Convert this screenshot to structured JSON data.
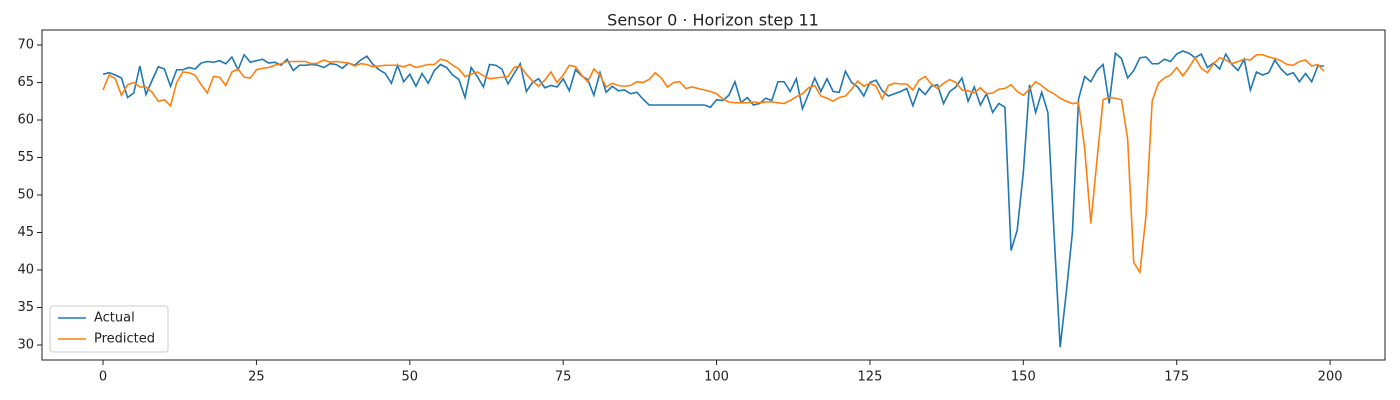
{
  "chart_data": {
    "type": "line",
    "title": "Sensor 0 · Horizon step 11",
    "x": [
      0,
      1,
      2,
      3,
      4,
      5,
      6,
      7,
      8,
      9,
      10,
      11,
      12,
      13,
      14,
      15,
      16,
      17,
      18,
      19,
      20,
      21,
      22,
      23,
      24,
      25,
      26,
      27,
      28,
      29,
      30,
      31,
      32,
      33,
      34,
      35,
      36,
      37,
      38,
      39,
      40,
      41,
      42,
      43,
      44,
      45,
      46,
      47,
      48,
      49,
      50,
      51,
      52,
      53,
      54,
      55,
      56,
      57,
      58,
      59,
      60,
      61,
      62,
      63,
      64,
      65,
      66,
      67,
      68,
      69,
      70,
      71,
      72,
      73,
      74,
      75,
      76,
      77,
      78,
      79,
      80,
      81,
      82,
      83,
      84,
      85,
      86,
      87,
      88,
      89,
      90,
      91,
      92,
      93,
      94,
      95,
      96,
      97,
      98,
      99,
      100,
      101,
      102,
      103,
      104,
      105,
      106,
      107,
      108,
      109,
      110,
      111,
      112,
      113,
      114,
      115,
      116,
      117,
      118,
      119,
      120,
      121,
      122,
      123,
      124,
      125,
      126,
      127,
      128,
      129,
      130,
      131,
      132,
      133,
      134,
      135,
      136,
      137,
      138,
      139,
      140,
      141,
      142,
      143,
      144,
      145,
      146,
      147,
      148,
      149,
      150,
      151,
      152,
      153,
      154,
      155,
      156,
      157,
      158,
      159,
      160,
      161,
      162,
      163,
      164,
      165,
      166,
      167,
      168,
      169,
      170,
      171,
      172,
      173,
      174,
      175,
      176,
      177,
      178,
      179,
      180,
      181,
      182,
      183,
      184,
      185,
      186,
      187,
      188,
      189,
      190,
      191,
      192,
      193,
      194,
      195,
      196,
      197,
      198,
      199
    ],
    "series": [
      {
        "name": "Actual",
        "color": "#1f77b4",
        "values": [
          66.1,
          66.3,
          66.0,
          65.6,
          63.0,
          63.6,
          67.2,
          63.4,
          65.3,
          67.1,
          66.8,
          64.5,
          66.7,
          66.7,
          67.0,
          66.8,
          67.6,
          67.8,
          67.7,
          67.9,
          67.5,
          68.4,
          66.7,
          68.7,
          67.7,
          67.9,
          68.1,
          67.6,
          67.7,
          67.3,
          68.1,
          66.6,
          67.3,
          67.3,
          67.4,
          67.3,
          67.0,
          67.5,
          67.4,
          66.9,
          67.6,
          67.3,
          68.0,
          68.5,
          67.4,
          66.7,
          66.2,
          64.9,
          67.3,
          65.1,
          66.1,
          64.5,
          66.2,
          64.9,
          66.6,
          67.4,
          67.0,
          66.0,
          65.4,
          63.0,
          67.0,
          65.8,
          64.4,
          67.4,
          67.3,
          66.8,
          64.8,
          66.2,
          67.5,
          63.8,
          65.0,
          65.5,
          64.3,
          64.6,
          64.4,
          65.5,
          63.9,
          66.7,
          65.9,
          65.4,
          63.3,
          66.3,
          63.7,
          64.5,
          63.9,
          64.0,
          63.5,
          63.7,
          62.8,
          62.0,
          62.0,
          62.0,
          62.0,
          62.0,
          62.0,
          62.0,
          62.0,
          62.0,
          62.0,
          61.7,
          62.7,
          62.6,
          63.3,
          65.1,
          62.3,
          63.0,
          62.0,
          62.2,
          62.9,
          62.6,
          65.1,
          65.1,
          63.8,
          65.5,
          61.5,
          63.5,
          65.6,
          63.8,
          65.5,
          63.8,
          63.7,
          66.5,
          65.0,
          64.4,
          63.2,
          65.0,
          65.3,
          63.9,
          63.2,
          63.5,
          63.8,
          64.2,
          61.9,
          64.2,
          63.4,
          64.5,
          64.7,
          62.2,
          63.8,
          64.4,
          65.6,
          62.5,
          64.4,
          62.0,
          63.5,
          61.0,
          62.2,
          61.7,
          42.6,
          45.3,
          53.0,
          64.7,
          61.0,
          63.7,
          61.0,
          45.0,
          29.7,
          37.0,
          45.0,
          62.8,
          65.8,
          65.1,
          66.6,
          67.4,
          62.2,
          68.9,
          68.2,
          65.6,
          66.6,
          68.3,
          68.4,
          67.5,
          67.5,
          68.1,
          67.8,
          68.8,
          69.2,
          68.9,
          68.3,
          68.8,
          67.0,
          67.6,
          66.8,
          68.8,
          67.4,
          66.6,
          68.1,
          64.0,
          66.4,
          66.0,
          66.3,
          68.0,
          66.8,
          66.0,
          66.3,
          65.1,
          66.2,
          65.1,
          67.2,
          67.2
        ]
      },
      {
        "name": "Predicted",
        "color": "#ff7f0e",
        "values": [
          64.0,
          66.0,
          65.5,
          63.3,
          64.7,
          65.0,
          64.4,
          64.4,
          63.7,
          62.5,
          62.7,
          61.9,
          65.0,
          66.4,
          66.3,
          66.0,
          64.7,
          63.6,
          65.8,
          65.7,
          64.6,
          66.4,
          66.8,
          65.7,
          65.6,
          66.7,
          66.9,
          67.0,
          67.3,
          67.5,
          67.8,
          67.8,
          67.8,
          67.8,
          67.5,
          67.6,
          68.0,
          67.7,
          67.8,
          67.7,
          67.6,
          67.2,
          67.5,
          67.4,
          67.1,
          67.2,
          67.3,
          67.3,
          67.3,
          67.1,
          67.4,
          67.0,
          67.2,
          67.4,
          67.4,
          68.1,
          67.9,
          67.3,
          66.8,
          65.8,
          66.1,
          66.4,
          65.9,
          65.5,
          65.6,
          65.7,
          65.8,
          67.0,
          67.2,
          66.1,
          65.2,
          64.5,
          65.3,
          66.4,
          65.0,
          66.0,
          67.3,
          67.1,
          66.0,
          65.1,
          66.8,
          66.0,
          64.4,
          64.9,
          64.6,
          64.5,
          64.6,
          65.1,
          65.0,
          65.4,
          66.3,
          65.6,
          64.4,
          65.0,
          65.1,
          64.2,
          64.4,
          64.2,
          64.0,
          63.8,
          63.5,
          62.8,
          62.4,
          62.3,
          62.3,
          62.3,
          62.4,
          62.3,
          62.4,
          62.4,
          62.3,
          62.2,
          62.6,
          63.1,
          63.5,
          64.3,
          64.6,
          63.2,
          62.9,
          62.5,
          63.0,
          63.2,
          64.1,
          65.2,
          64.5,
          64.9,
          64.5,
          62.8,
          64.6,
          64.9,
          64.8,
          64.8,
          64.0,
          65.3,
          65.8,
          64.8,
          64.2,
          64.9,
          65.4,
          65.0,
          64.0,
          63.9,
          63.6,
          64.3,
          63.5,
          63.6,
          64.1,
          64.2,
          64.7,
          63.8,
          63.3,
          64.1,
          65.1,
          64.6,
          63.9,
          63.5,
          62.9,
          62.5,
          62.2,
          62.3,
          56.2,
          46.2,
          54.6,
          62.7,
          63.0,
          62.9,
          62.7,
          57.5,
          41.0,
          39.7,
          47.3,
          62.5,
          64.9,
          65.6,
          66.0,
          67.0,
          65.9,
          67.0,
          68.3,
          66.9,
          66.3,
          67.5,
          68.3,
          68.0,
          67.5,
          67.8,
          68.1,
          68.0,
          68.7,
          68.7,
          68.4,
          68.2,
          67.9,
          67.4,
          67.3,
          67.8,
          68.0,
          67.2,
          67.4,
          66.5
        ]
      }
    ],
    "xlim": [
      -9.95,
      208.95
    ],
    "xticks": [
      0,
      25,
      50,
      75,
      100,
      125,
      150,
      175,
      200
    ],
    "ylim": [
      28,
      72
    ],
    "yticks": [
      30,
      35,
      40,
      45,
      50,
      55,
      60,
      65,
      70
    ],
    "legend": "lower left"
  }
}
